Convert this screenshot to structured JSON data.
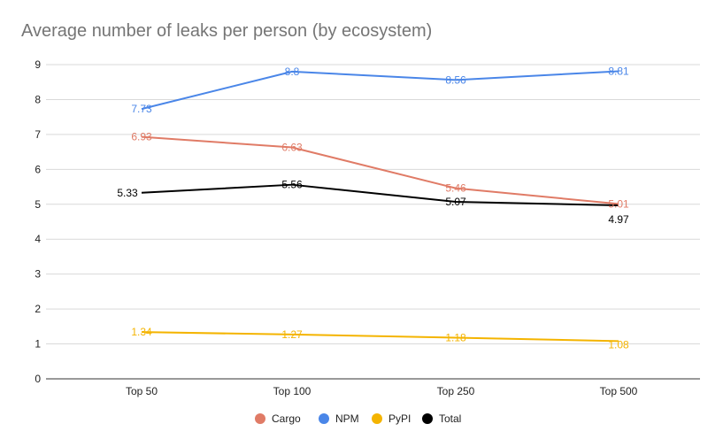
{
  "chart_data": {
    "type": "line",
    "title": "Average number of leaks per person (by ecosystem)",
    "xlabel": "",
    "ylabel": "",
    "categories": [
      "Top 50",
      "Top 100",
      "Top 250",
      "Top 500"
    ],
    "ylim": [
      0,
      9
    ],
    "yticks": [
      "0",
      "1",
      "2",
      "3",
      "4",
      "5",
      "6",
      "7",
      "8",
      "9"
    ],
    "grid": true,
    "legend_position": "bottom",
    "series": [
      {
        "name": "Cargo",
        "color": "#E07B66",
        "values": [
          6.93,
          6.63,
          5.46,
          5.01
        ],
        "labels": [
          "6.93",
          "6.63",
          "5.46",
          "5.01"
        ]
      },
      {
        "name": "NPM",
        "color": "#4A86E8",
        "values": [
          7.73,
          8.8,
          8.56,
          8.81
        ],
        "labels": [
          "7.73",
          "8.8",
          "8.56",
          "8.81"
        ]
      },
      {
        "name": "PyPI",
        "color": "#F4B400",
        "values": [
          1.34,
          1.27,
          1.18,
          1.08
        ],
        "labels": [
          "1.34",
          "1.27",
          "1.18",
          "1.08"
        ]
      },
      {
        "name": "Total",
        "color": "#000000",
        "values": [
          5.33,
          5.56,
          5.07,
          4.97
        ],
        "labels": [
          "5.33",
          "5.56",
          "5.07",
          "4.97"
        ]
      }
    ]
  }
}
